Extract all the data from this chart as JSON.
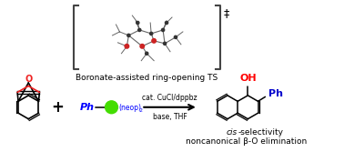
{
  "background_color": "#ffffff",
  "ts_label": "Boronate-assisted ring-opening TS",
  "ts_dagger": "‡",
  "reaction_arrow_text_top": "cat. CuCl/dppbz",
  "reaction_arrow_text_bottom": "base, THF",
  "product_label_line1_italic": "cis",
  "product_label_line1_rest": "-selectivity",
  "product_label_line2": "noncanonical β-O elimination",
  "boron_color": "#44dd00",
  "boron_text_color": "#0000ff",
  "OH_color": "#ff0000",
  "Ph_color": "#0000cc",
  "O_color": "#ee2222",
  "figsize": [
    3.78,
    1.78
  ],
  "dpi": 100
}
